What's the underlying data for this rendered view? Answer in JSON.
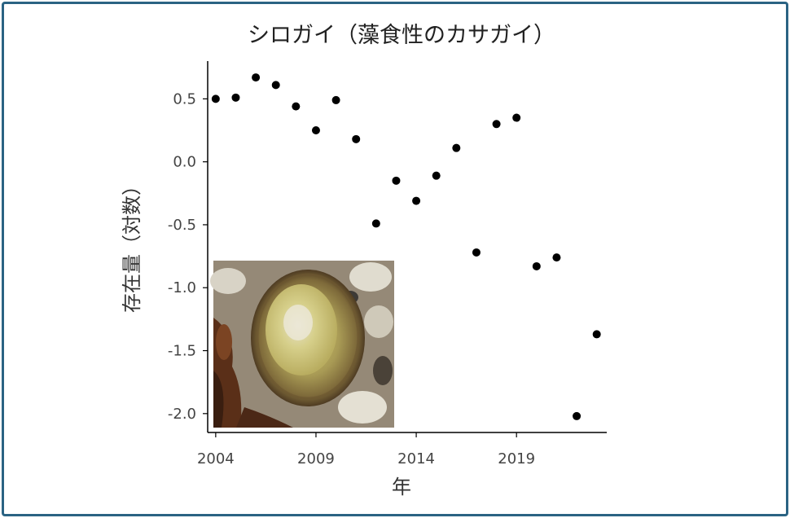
{
  "colors": {
    "border": "#2a6383",
    "points": "#000000",
    "axis": "#000000",
    "text": "#333333"
  },
  "chart_data": {
    "type": "scatter",
    "title": "シロガイ（藻食性のカサガイ）",
    "xlabel": "年",
    "ylabel": "存在量（対数）",
    "xlim": [
      2003.6,
      2023.5
    ],
    "ylim": [
      -2.15,
      0.8
    ],
    "xticks": [
      2004,
      2009,
      2014,
      2019
    ],
    "yticks": [
      0.5,
      0.0,
      -0.5,
      -1.0,
      -1.5,
      -2.0
    ],
    "ytick_labels": [
      "0.5",
      "0.0",
      "-0.5",
      "-1.0",
      "-1.5",
      "-2.0"
    ],
    "grid": false,
    "legend": "none",
    "inset_image": "photo of a limpet (シロガイ) on rock",
    "x": [
      2004,
      2005,
      2006,
      2007,
      2008,
      2009,
      2010,
      2011,
      2012,
      2013,
      2014,
      2015,
      2016,
      2017,
      2018,
      2019,
      2020,
      2021,
      2022,
      2023
    ],
    "y": [
      0.5,
      0.51,
      0.67,
      0.61,
      0.44,
      0.25,
      0.49,
      0.18,
      -0.49,
      -0.15,
      -0.31,
      -0.11,
      0.11,
      -0.72,
      0.3,
      0.35,
      -0.83,
      -0.76,
      -2.02,
      -1.37
    ]
  }
}
